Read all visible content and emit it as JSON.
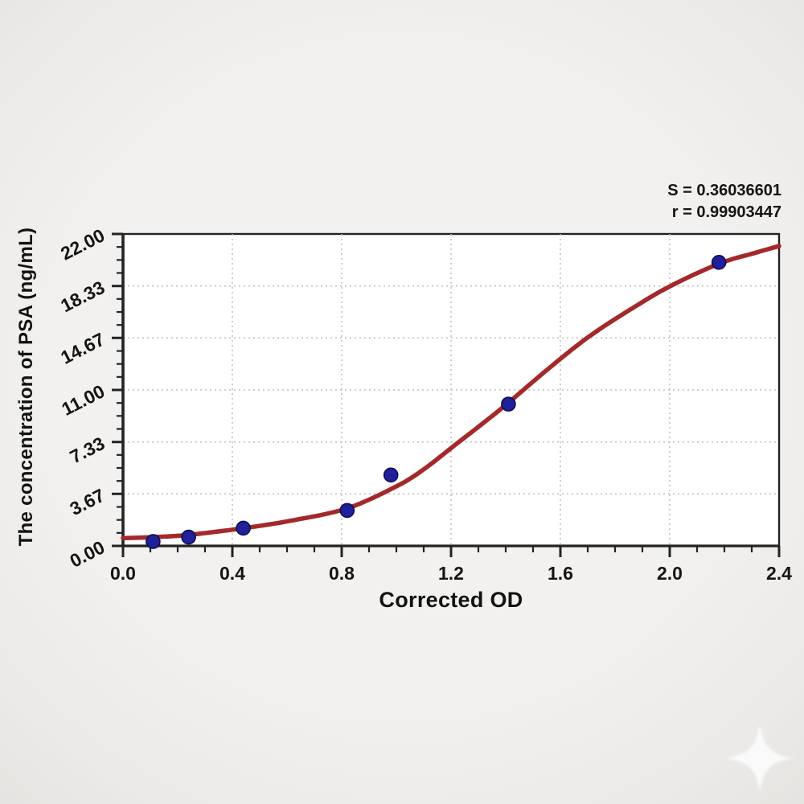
{
  "figure": {
    "y_axis_title": "The concentration of PSA (ng/mL)",
    "x_axis_title": "Corrected OD",
    "annotation": {
      "s_line": "S = 0.36036601",
      "r_line": "r = 0.99903447"
    }
  },
  "chart_data": {
    "type": "scatter",
    "title": "",
    "xlabel": "Corrected OD",
    "ylabel": "The concentration of PSA (ng/mL)",
    "xlim": [
      0,
      2.4
    ],
    "ylim": [
      0,
      22
    ],
    "x_major_ticks": [
      0,
      0.4,
      0.8,
      1.2,
      1.6,
      2.0,
      2.4
    ],
    "x_tick_labels": [
      "0.0",
      "0.4",
      "0.8",
      "1.2",
      "1.6",
      "2.0",
      "2.4"
    ],
    "x_minor_step": 0.1,
    "y_major_ticks": [
      0,
      3.67,
      7.33,
      11.0,
      14.67,
      18.33,
      22.0
    ],
    "y_tick_labels": [
      "0.00",
      "3.67",
      "7.33",
      "11.00",
      "14.67",
      "18.33",
      "22.00"
    ],
    "y_minor_per_major": 4,
    "grid": "dotted",
    "legend_position": "none",
    "stats": {
      "S": "0.36036601",
      "r": "0.99903447"
    },
    "series": [
      {
        "name": "standard-points",
        "type": "scatter",
        "marker": "circle",
        "color": "#20209A",
        "edge_color": "#0D0D52",
        "x": [
          0.11,
          0.24,
          0.44,
          0.82,
          0.98,
          1.41,
          2.18
        ],
        "y": [
          0.31,
          0.62,
          1.25,
          2.5,
          5.0,
          10.0,
          20.0
        ]
      },
      {
        "name": "4pl-fit-curve",
        "type": "line",
        "color": "#A3292B",
        "width": 5.5,
        "points": [
          [
            0,
            0.55
          ],
          [
            0.11,
            0.62
          ],
          [
            0.24,
            0.78
          ],
          [
            0.44,
            1.25
          ],
          [
            0.62,
            1.8
          ],
          [
            0.82,
            2.65
          ],
          [
            1.0,
            4.2
          ],
          [
            1.1,
            5.4
          ],
          [
            1.22,
            7.2
          ],
          [
            1.32,
            8.7
          ],
          [
            1.41,
            10.1
          ],
          [
            1.55,
            12.4
          ],
          [
            1.7,
            14.7
          ],
          [
            1.85,
            16.6
          ],
          [
            2.0,
            18.3
          ],
          [
            2.18,
            19.9
          ],
          [
            2.3,
            20.6
          ],
          [
            2.4,
            21.15
          ]
        ]
      }
    ],
    "colors": {
      "plot_background": "#FFFFFF",
      "page_background": "#EFEEEB",
      "axis": "#232323",
      "grid": "#BDBDBD",
      "tick_label": "#141414"
    }
  },
  "watermark": {
    "icon": "four-point-star-sparkle"
  }
}
